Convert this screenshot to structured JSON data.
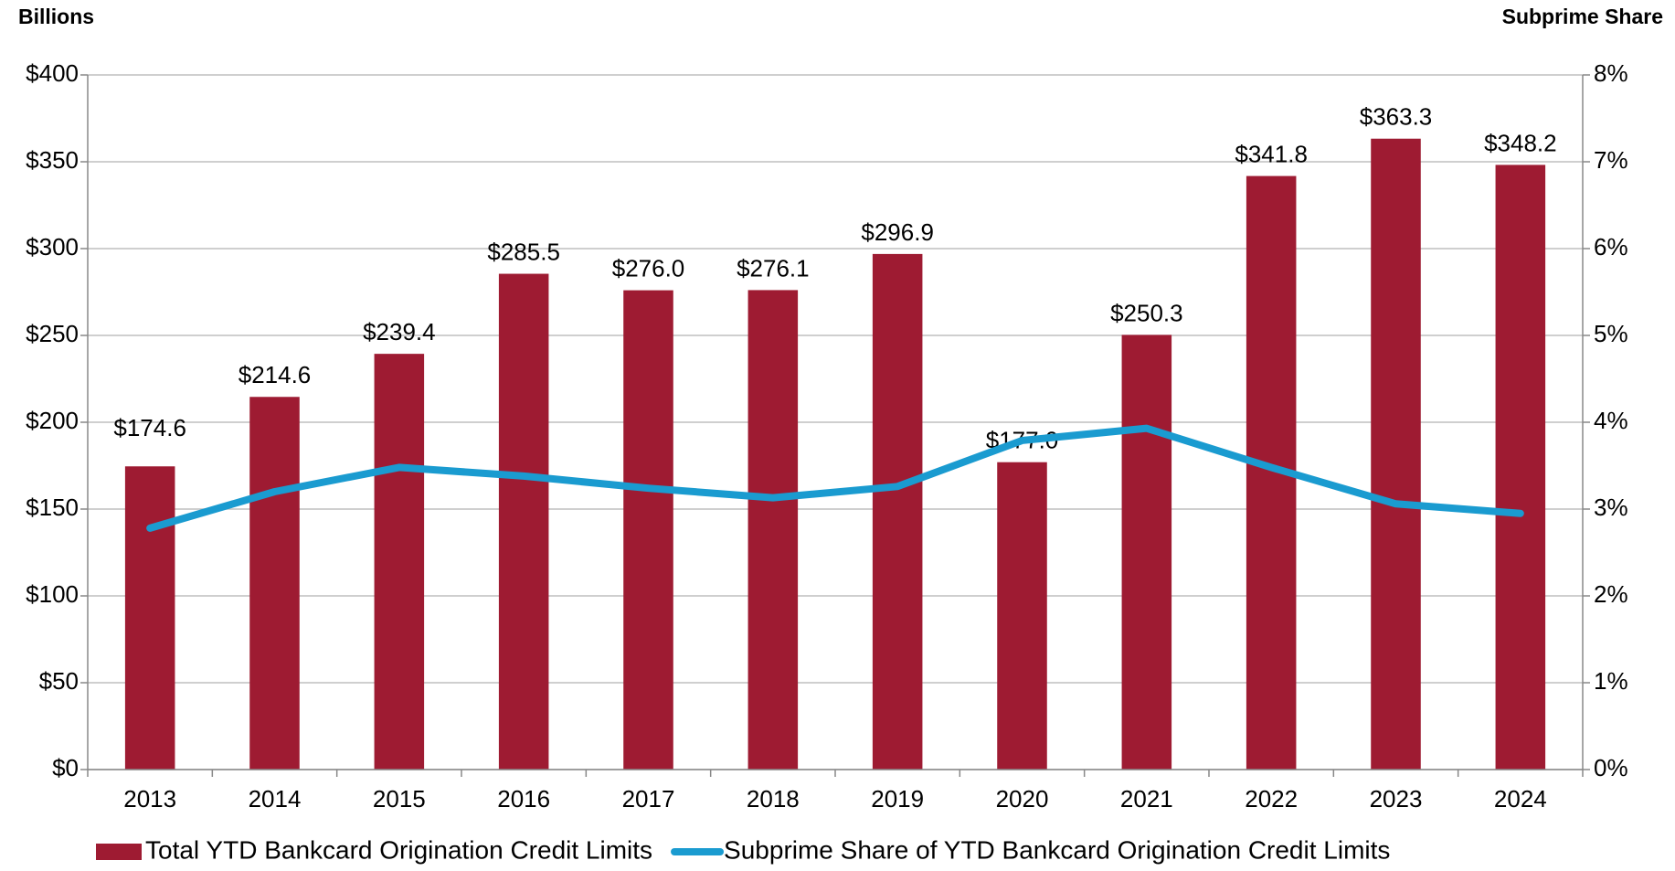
{
  "chart_data": {
    "type": "bar",
    "y_axis_title": "Billions",
    "y2_axis_title": "Subprime Share",
    "categories": [
      "2013",
      "2014",
      "2015",
      "2016",
      "2017",
      "2018",
      "2019",
      "2020",
      "2021",
      "2022",
      "2023",
      "2024"
    ],
    "series": [
      {
        "name": "Total YTD Bankcard Origination Credit Limits",
        "type": "bar",
        "color": "#9e1b32",
        "values": [
          174.6,
          214.6,
          239.4,
          285.5,
          276.0,
          276.1,
          296.9,
          177.0,
          250.3,
          341.8,
          363.3,
          348.2
        ],
        "value_labels": [
          "$174.6",
          "$214.6",
          "$239.4",
          "$285.5",
          "$276.0",
          "$276.1",
          "$296.9",
          "$177.0",
          "$250.3",
          "$341.8",
          "$363.3",
          "$348.2"
        ]
      },
      {
        "name": "Subprime Share of YTD Bankcard Origination Credit Limits",
        "type": "line",
        "color": "#1a9bd0",
        "axis": "y2",
        "values": [
          2.78,
          3.2,
          3.48,
          3.38,
          3.24,
          3.13,
          3.26,
          3.79,
          3.93,
          3.48,
          3.06,
          2.95
        ]
      }
    ],
    "ylim": [
      0,
      400
    ],
    "yticks": [
      {
        "value": 0,
        "label": "$0"
      },
      {
        "value": 50,
        "label": "$50"
      },
      {
        "value": 100,
        "label": "$100"
      },
      {
        "value": 150,
        "label": "$150"
      },
      {
        "value": 200,
        "label": "$200"
      },
      {
        "value": 250,
        "label": "$250"
      },
      {
        "value": 300,
        "label": "$300"
      },
      {
        "value": 350,
        "label": "$350"
      },
      {
        "value": 400,
        "label": "$400"
      }
    ],
    "y2lim": [
      0,
      8
    ],
    "y2ticks": [
      {
        "value": 0,
        "label": "0%"
      },
      {
        "value": 1,
        "label": "1%"
      },
      {
        "value": 2,
        "label": "2%"
      },
      {
        "value": 3,
        "label": "3%"
      },
      {
        "value": 4,
        "label": "4%"
      },
      {
        "value": 5,
        "label": "5%"
      },
      {
        "value": 6,
        "label": "6%"
      },
      {
        "value": 7,
        "label": "7%"
      },
      {
        "value": 8,
        "label": "8%"
      }
    ],
    "grid": true,
    "legend": "bottom"
  }
}
